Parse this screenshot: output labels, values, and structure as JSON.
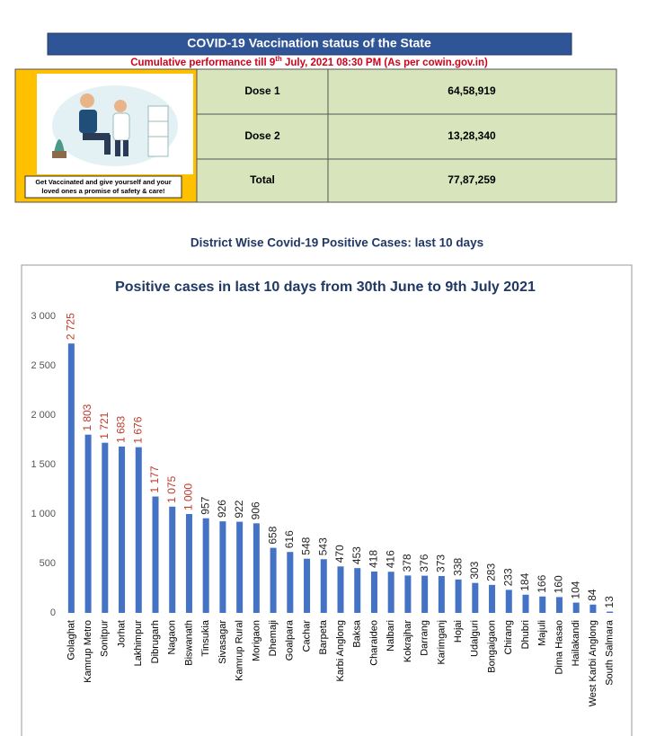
{
  "header": {
    "title": "COVID-19 Vaccination status of the State",
    "subtitle": [
      "Cumulative performance till 9",
      "th",
      " July, 2021 08:30 PM (As per cowin.gov.in)"
    ]
  },
  "illustration": {
    "caption": [
      "Get Vaccinated and give yourself and your",
      "loved ones a promise of safety & care!"
    ]
  },
  "table": {
    "rows": [
      [
        "Dose 1",
        "64,58,919"
      ],
      [
        "Dose 2",
        "13,28,340"
      ],
      [
        "Total",
        "77,87,259"
      ]
    ]
  },
  "section_title": "District Wise Covid-19 Positive Cases: last 10 days",
  "chart_data": {
    "type": "bar",
    "title": "Positive cases in last 10 days from 30th June to 9th July 2021",
    "categories": [
      "Golaghat",
      "Kamrup Metro",
      "Sonitpur",
      "Jorhat",
      "Lakhimpur",
      "Dibrugarh",
      "Nagaon",
      "Biswanath",
      "Tinsukia",
      "Sivasagar",
      "Kamrup Rural",
      "Morigaon",
      "Dhemaji",
      "Goalpara",
      "Cachar",
      "Barpeta",
      "Karbi Anglong",
      "Baksa",
      "Charaideo",
      "Nalbari",
      "Kokrajhar",
      "Darrang",
      "Karimganj",
      "Hojai",
      "Udalguri",
      "Bongaigaon",
      "Chirang",
      "Dhubri",
      "Majuli",
      "Dima Hasao",
      "Hailakandi",
      "West Karbi Anglong",
      "South Salmara"
    ],
    "values": [
      2725,
      1803,
      1721,
      1683,
      1676,
      1177,
      1075,
      1000,
      957,
      926,
      922,
      906,
      658,
      616,
      548,
      543,
      470,
      453,
      418,
      416,
      378,
      376,
      373,
      338,
      303,
      283,
      233,
      184,
      166,
      160,
      104,
      84,
      13
    ],
    "value_labels": [
      "2 725",
      "1 803",
      "1 721",
      "1 683",
      "1 676",
      "1 177",
      "1 075",
      "1 000",
      "957",
      "926",
      "922",
      "906",
      "658",
      "616",
      "548",
      "543",
      "470",
      "453",
      "418",
      "416",
      "378",
      "376",
      "373",
      "338",
      "303",
      "283",
      "233",
      "184",
      "166",
      "160",
      "104",
      "84",
      "13"
    ],
    "value_label_colors": [
      "#c0392b",
      "#c0392b",
      "#c0392b",
      "#c0392b",
      "#c0392b",
      "#c0392b",
      "#c0392b",
      "#c0392b",
      "#222",
      "#222",
      "#222",
      "#222",
      "#222",
      "#222",
      "#222",
      "#222",
      "#222",
      "#222",
      "#222",
      "#222",
      "#222",
      "#222",
      "#222",
      "#222",
      "#222",
      "#222",
      "#222",
      "#222",
      "#222",
      "#222",
      "#222",
      "#222",
      "#222"
    ],
    "color": "#4472c4",
    "ylim": [
      0,
      3000
    ],
    "yticks": [
      0,
      500,
      {
        "value": 1000,
        "label": "1 000"
      },
      {
        "value": 1500,
        "label": "1 500"
      },
      {
        "value": 2000,
        "label": "2 000"
      },
      {
        "value": 2500,
        "label": "2 500"
      },
      {
        "value": 3000,
        "label": "3 000"
      }
    ],
    "grid": false
  }
}
